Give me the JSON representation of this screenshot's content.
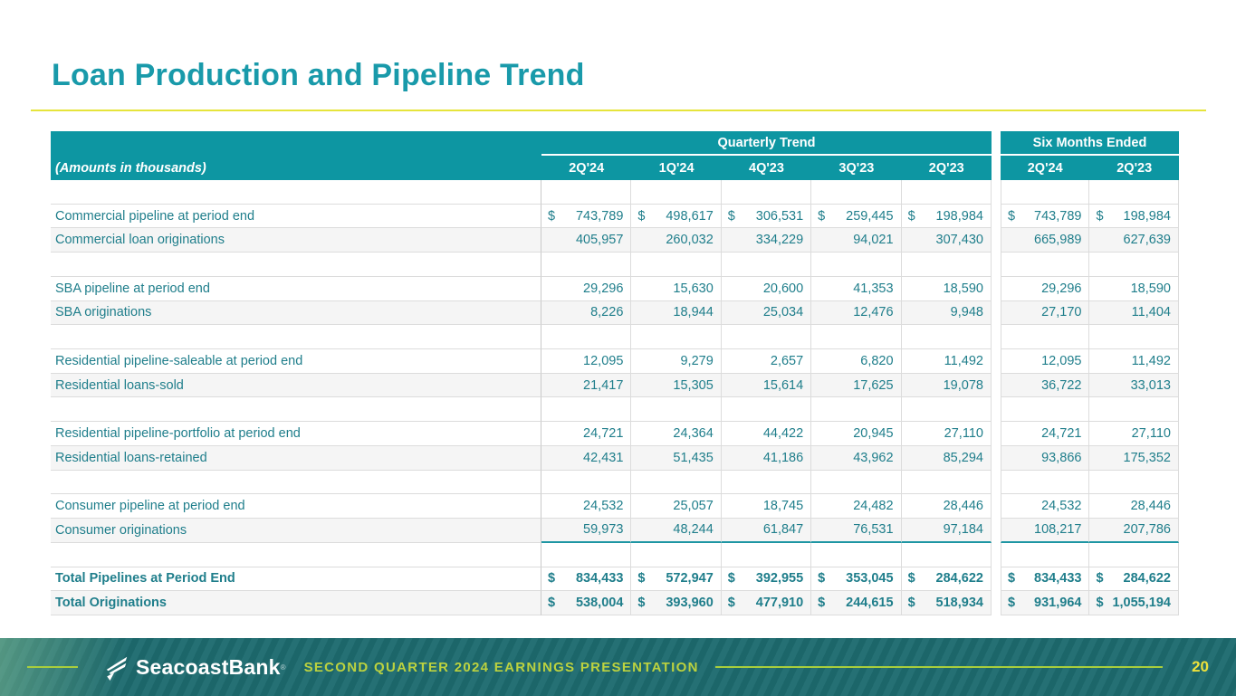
{
  "title": "Loan Production and Pipeline Trend",
  "colors": {
    "header_teal": "#0D96A2",
    "text_teal": "#1F7E8B",
    "title_teal": "#199AAA",
    "title_rule_yellow": "#E6E43C",
    "subtotal_line_teal": "#1E96A3",
    "footer_background": "#1D6B6F",
    "footer_accent_green": "#A8CE3C",
    "page_number_yellow": "#EDE13B"
  },
  "table": {
    "corner_label": "(Amounts in thousands)",
    "groups": [
      {
        "label": "Quarterly Trend",
        "columns": [
          "2Q'24",
          "1Q'24",
          "4Q'23",
          "3Q'23",
          "2Q'23"
        ]
      },
      {
        "label": "Six Months Ended",
        "columns": [
          "2Q'24",
          "2Q'23"
        ]
      }
    ],
    "rows": [
      {
        "type": "spacer"
      },
      {
        "label": "Commercial pipeline at period end",
        "dollar": true,
        "values": [
          "743,789",
          "498,617",
          "306,531",
          "259,445",
          "198,984",
          "743,789",
          "198,984"
        ]
      },
      {
        "label": "Commercial loan originations",
        "shaded": true,
        "values": [
          "405,957",
          "260,032",
          "334,229",
          "94,021",
          "307,430",
          "665,989",
          "627,639"
        ]
      },
      {
        "type": "spacer"
      },
      {
        "label": "SBA pipeline at period end",
        "values": [
          "29,296",
          "15,630",
          "20,600",
          "41,353",
          "18,590",
          "29,296",
          "18,590"
        ]
      },
      {
        "label": "SBA originations",
        "shaded": true,
        "values": [
          "8,226",
          "18,944",
          "25,034",
          "12,476",
          "9,948",
          "27,170",
          "11,404"
        ]
      },
      {
        "type": "spacer"
      },
      {
        "label": "Residential pipeline-saleable at period end",
        "values": [
          "12,095",
          "9,279",
          "2,657",
          "6,820",
          "11,492",
          "12,095",
          "11,492"
        ]
      },
      {
        "label": "Residential loans-sold",
        "shaded": true,
        "values": [
          "21,417",
          "15,305",
          "15,614",
          "17,625",
          "19,078",
          "36,722",
          "33,013"
        ]
      },
      {
        "type": "spacer"
      },
      {
        "label": "Residential pipeline-portfolio at period end",
        "values": [
          "24,721",
          "24,364",
          "44,422",
          "20,945",
          "27,110",
          "24,721",
          "27,110"
        ]
      },
      {
        "label": "Residential loans-retained",
        "shaded": true,
        "values": [
          "42,431",
          "51,435",
          "41,186",
          "43,962",
          "85,294",
          "93,866",
          "175,352"
        ]
      },
      {
        "type": "spacer"
      },
      {
        "label": "Consumer pipeline at period end",
        "values": [
          "24,532",
          "25,057",
          "18,745",
          "24,482",
          "28,446",
          "24,532",
          "28,446"
        ]
      },
      {
        "label": "Consumer originations",
        "shaded": true,
        "underline": true,
        "values": [
          "59,973",
          "48,244",
          "61,847",
          "76,531",
          "97,184",
          "108,217",
          "207,786"
        ]
      },
      {
        "type": "spacer"
      },
      {
        "label": "Total Pipelines at Period End",
        "bold": true,
        "dollar": true,
        "values": [
          "834,433",
          "572,947",
          "392,955",
          "353,045",
          "284,622",
          "834,433",
          "284,622"
        ]
      },
      {
        "label": "Total Originations",
        "bold": true,
        "dollar": true,
        "shaded": true,
        "values": [
          "538,004",
          "393,960",
          "477,910",
          "244,615",
          "518,934",
          "931,964",
          "1,055,194"
        ]
      }
    ],
    "dollar_sign": "$"
  },
  "footer": {
    "brand": "SeacoastBank",
    "registered_mark": "®",
    "tagline": "SECOND QUARTER 2024 EARNINGS PRESENTATION",
    "page_number": "20"
  }
}
